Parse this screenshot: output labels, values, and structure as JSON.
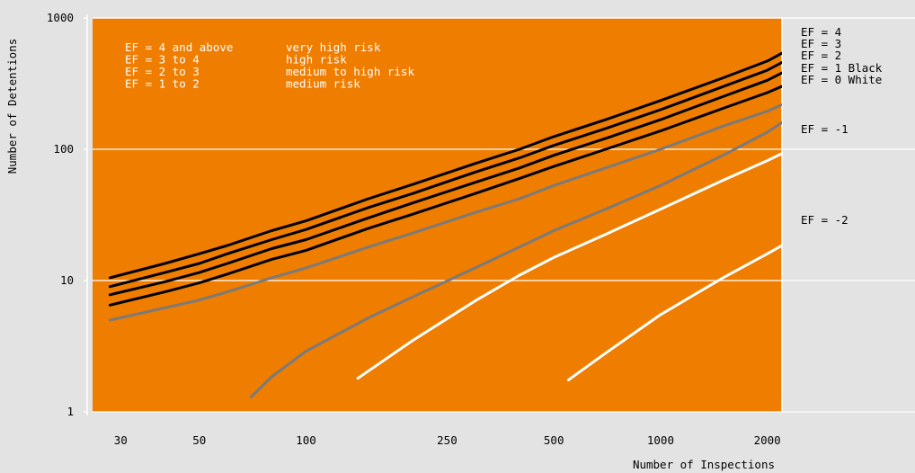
{
  "chart_data": {
    "type": "line",
    "xlabel": "Number of Inspections",
    "ylabel": "Number of Detentions",
    "x_scale": "log",
    "y_scale": "log",
    "xlim": [
      25,
      2200
    ],
    "ylim": [
      1,
      1000
    ],
    "grid": true,
    "x_ticks": [
      30,
      50,
      100,
      250,
      500,
      1000,
      2000
    ],
    "y_ticks": [
      1,
      10,
      100,
      1000
    ],
    "zones": {
      "high_risk_color": "#ef7d00",
      "low_risk_color": "#e3e3e3",
      "lower_boundary_detentions": 1,
      "upper_boundary_inspections": 2200
    },
    "legend": [
      {
        "range": "EF = 4 and above",
        "risk": "very high risk"
      },
      {
        "range": "EF = 3 to 4",
        "risk": "high risk"
      },
      {
        "range": "EF = 2 to 3",
        "risk": "medium to high risk"
      },
      {
        "range": "EF = 1 to 2",
        "risk": "medium risk"
      }
    ],
    "series": [
      {
        "name": "EF = 4",
        "color": "#000000",
        "x": [
          28,
          40,
          50,
          60,
          80,
          100,
          150,
          200,
          300,
          400,
          500,
          700,
          1000,
          1500,
          2000,
          2500
        ],
        "y": [
          10.5,
          13.5,
          16,
          18.5,
          24,
          28.5,
          42,
          54,
          78,
          100,
          125,
          168,
          235,
          350,
          470,
          650
        ]
      },
      {
        "name": "EF = 3",
        "color": "#000000",
        "x": [
          28,
          40,
          50,
          60,
          80,
          100,
          150,
          200,
          300,
          400,
          500,
          700,
          1000,
          1500,
          2000,
          2500
        ],
        "y": [
          9,
          11.5,
          13.5,
          16,
          20.5,
          24.5,
          36,
          46,
          67,
          86,
          107,
          144,
          200,
          300,
          400,
          550
        ]
      },
      {
        "name": "EF = 2",
        "color": "#000000",
        "x": [
          28,
          40,
          50,
          60,
          80,
          100,
          150,
          200,
          300,
          400,
          500,
          700,
          1000,
          1500,
          2000,
          2500
        ],
        "y": [
          7.8,
          9.8,
          11.5,
          13.5,
          17.5,
          20.5,
          30,
          39,
          56,
          72,
          90,
          121,
          168,
          252,
          335,
          455
        ]
      },
      {
        "name": "EF = 1 Black",
        "color": "#000000",
        "x": [
          28,
          40,
          50,
          60,
          80,
          100,
          150,
          200,
          300,
          400,
          500,
          700,
          1000,
          1500,
          2000,
          2500
        ],
        "y": [
          6.5,
          8.2,
          9.6,
          11.2,
          14.5,
          17,
          25,
          32,
          46,
          60,
          74,
          100,
          138,
          205,
          270,
          350
        ]
      },
      {
        "name": "EF = 0 White",
        "color": "#7a7a7a",
        "x": [
          28,
          40,
          50,
          60,
          80,
          100,
          150,
          200,
          300,
          400,
          500,
          700,
          1000,
          1500,
          2000,
          2500
        ],
        "y": [
          5,
          6.2,
          7.1,
          8.2,
          10.5,
          12.5,
          18,
          23,
          33,
          42,
          53,
          72,
          100,
          150,
          195,
          255
        ]
      },
      {
        "name": "EF = -1",
        "color": "#7a7a7a",
        "x": [
          70,
          80,
          100,
          150,
          200,
          300,
          400,
          500,
          700,
          1000,
          1500,
          2000,
          2500
        ],
        "y": [
          1.3,
          1.85,
          2.9,
          5.2,
          7.5,
          12.5,
          18,
          24,
          35,
          53,
          90,
          135,
          200
        ]
      },
      {
        "name": "EF = -2 (white, upper)",
        "color": "#ffffff",
        "x": [
          140,
          200,
          300,
          400,
          500,
          700,
          1000,
          1500,
          2000,
          2500
        ],
        "y": [
          1.8,
          3.5,
          7,
          11,
          15,
          22.5,
          35,
          58,
          82,
          110
        ]
      },
      {
        "name": "EF = -2 (white, lower)",
        "color": "#ffffff",
        "x": [
          550,
          700,
          1000,
          1500,
          2000,
          2500
        ],
        "y": [
          1.75,
          2.8,
          5.5,
          10.5,
          16,
          22.5
        ]
      }
    ],
    "right_labels": [
      "EF = 4",
      "EF = 3",
      "EF = 2",
      "EF = 1 Black",
      "EF = 0 White",
      "EF = -1",
      "EF = -2"
    ]
  }
}
